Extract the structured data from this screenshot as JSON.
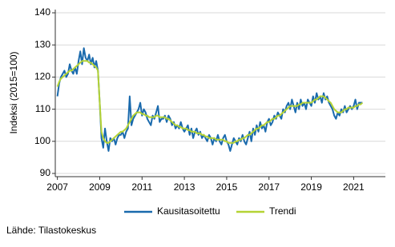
{
  "chart_data": {
    "type": "line",
    "y_label": "Indeksi (2015=100)",
    "source": "Lähde: Tilastokeskus",
    "x": [
      2007,
      2007.083,
      2007.167,
      2007.25,
      2007.333,
      2007.417,
      2007.5,
      2007.583,
      2007.667,
      2007.75,
      2007.833,
      2007.917,
      2008,
      2008.083,
      2008.167,
      2008.25,
      2008.333,
      2008.417,
      2008.5,
      2008.583,
      2008.667,
      2008.75,
      2008.833,
      2008.917,
      2009,
      2009.083,
      2009.167,
      2009.25,
      2009.333,
      2009.417,
      2009.5,
      2009.583,
      2009.667,
      2009.75,
      2009.833,
      2009.917,
      2010,
      2010.083,
      2010.167,
      2010.25,
      2010.333,
      2010.417,
      2010.5,
      2010.583,
      2010.667,
      2010.75,
      2010.833,
      2010.917,
      2011,
      2011.083,
      2011.167,
      2011.25,
      2011.333,
      2011.417,
      2011.5,
      2011.583,
      2011.667,
      2011.75,
      2011.833,
      2011.917,
      2012,
      2012.083,
      2012.167,
      2012.25,
      2012.333,
      2012.417,
      2012.5,
      2012.583,
      2012.667,
      2012.75,
      2012.833,
      2012.917,
      2013,
      2013.083,
      2013.167,
      2013.25,
      2013.333,
      2013.417,
      2013.5,
      2013.583,
      2013.667,
      2013.75,
      2013.833,
      2013.917,
      2014,
      2014.083,
      2014.167,
      2014.25,
      2014.333,
      2014.417,
      2014.5,
      2014.583,
      2014.667,
      2014.75,
      2014.833,
      2014.917,
      2015,
      2015.083,
      2015.167,
      2015.25,
      2015.333,
      2015.417,
      2015.5,
      2015.583,
      2015.667,
      2015.75,
      2015.833,
      2015.917,
      2016,
      2016.083,
      2016.167,
      2016.25,
      2016.333,
      2016.417,
      2016.5,
      2016.583,
      2016.667,
      2016.75,
      2016.833,
      2016.917,
      2017,
      2017.083,
      2017.167,
      2017.25,
      2017.333,
      2017.417,
      2017.5,
      2017.583,
      2017.667,
      2017.75,
      2017.833,
      2017.917,
      2018,
      2018.083,
      2018.167,
      2018.25,
      2018.333,
      2018.417,
      2018.5,
      2018.583,
      2018.667,
      2018.75,
      2018.833,
      2018.917,
      2019,
      2019.083,
      2019.167,
      2019.25,
      2019.333,
      2019.417,
      2019.5,
      2019.583,
      2019.667,
      2019.75,
      2019.833,
      2019.917,
      2020,
      2020.083,
      2020.167,
      2020.25,
      2020.333,
      2020.417,
      2020.5,
      2020.583,
      2020.667,
      2020.75,
      2020.833,
      2020.917,
      2021,
      2021.083,
      2021.167,
      2021.25,
      2021.333,
      2021.417
    ],
    "series": [
      {
        "name": "Kausitasoitettu",
        "color": "#1a6aad",
        "values": [
          114,
          118,
          120,
          121,
          122,
          120,
          121,
          124,
          122,
          121,
          123,
          121,
          125,
          128,
          124,
          129,
          126,
          125,
          127,
          124,
          126,
          123,
          125,
          122,
          112,
          101,
          98,
          104,
          100,
          97,
          101,
          100,
          101,
          99,
          101,
          102,
          102,
          103,
          101,
          103,
          104,
          114,
          105,
          107,
          108,
          109,
          110,
          112,
          108,
          110,
          109,
          107,
          106,
          105,
          108,
          107,
          109,
          111,
          106,
          107,
          107,
          108,
          106,
          108,
          107,
          105,
          106,
          104,
          105,
          104,
          106,
          104,
          103,
          104,
          105,
          102,
          104,
          101,
          103,
          104,
          102,
          103,
          101,
          102,
          101,
          100,
          102,
          101,
          99,
          101,
          100,
          102,
          100,
          99,
          101,
          102,
          100,
          99,
          97,
          99,
          101,
          100,
          99,
          101,
          100,
          102,
          100,
          99,
          101,
          103,
          100,
          104,
          102,
          105,
          103,
          106,
          104,
          105,
          103,
          106,
          107,
          105,
          106,
          108,
          107,
          109,
          108,
          107,
          110,
          109,
          111,
          112,
          110,
          113,
          111,
          109,
          112,
          110,
          113,
          111,
          112,
          110,
          113,
          112,
          111,
          114,
          112,
          115,
          113,
          114,
          112,
          115,
          113,
          114,
          112,
          111,
          110,
          108,
          107,
          109,
          108,
          110,
          109,
          111,
          109,
          110,
          111,
          110,
          111,
          113,
          110,
          112,
          112,
          112
        ]
      },
      {
        "name": "Trendi",
        "color": "#b5d334",
        "values": [
          117,
          118.5,
          119.5,
          120,
          120.5,
          121,
          121.5,
          122,
          122,
          122.5,
          123,
          123.5,
          124,
          124.5,
          125,
          125,
          125,
          125,
          124.5,
          124.5,
          124,
          123.5,
          123,
          122,
          112,
          103,
          101,
          100,
          99.5,
          99.5,
          100,
          100.5,
          101,
          101.5,
          102,
          102.5,
          103,
          103,
          103.5,
          104,
          105,
          106,
          107,
          108,
          108.5,
          109,
          109,
          109,
          108.5,
          108.5,
          108,
          108,
          107.5,
          107.5,
          107.5,
          107.5,
          108,
          108,
          107.5,
          107.5,
          107.5,
          107.5,
          107,
          107,
          106.5,
          106,
          105.5,
          105,
          105,
          104.5,
          104.5,
          104,
          104,
          104,
          103.5,
          103.5,
          103,
          103,
          103,
          102.5,
          102.5,
          102.5,
          102,
          102,
          101.5,
          101.5,
          101,
          101,
          101,
          101,
          100.5,
          100.5,
          100.5,
          100.5,
          100.5,
          100,
          100,
          99.5,
          99.5,
          99.5,
          99.5,
          100,
          100,
          100.5,
          100.5,
          101,
          101,
          101.5,
          102,
          102,
          102.5,
          103,
          103.5,
          104,
          104,
          104.5,
          105,
          105,
          105.5,
          106,
          106,
          106.5,
          107,
          107,
          107.5,
          108,
          108,
          108.5,
          109,
          109.5,
          110,
          110.5,
          111,
          111,
          111,
          111,
          111,
          111.5,
          111.5,
          112,
          112,
          112,
          112,
          112,
          112,
          112.5,
          113,
          113,
          113.5,
          114,
          114,
          114,
          113.5,
          113,
          112.5,
          112,
          111,
          110,
          109.5,
          109,
          109,
          109,
          109.5,
          110,
          110,
          110.5,
          110.5,
          110.5,
          110.5,
          111,
          111,
          111.5,
          111.5,
          112
        ]
      }
    ],
    "xlim": [
      2006.9,
      2022.5
    ],
    "xticks": [
      2007,
      2009,
      2011,
      2013,
      2015,
      2017,
      2019,
      2021
    ],
    "ylim": [
      89,
      141
    ],
    "yticks": [
      90,
      100,
      110,
      120,
      130,
      140
    ],
    "grid": true
  }
}
